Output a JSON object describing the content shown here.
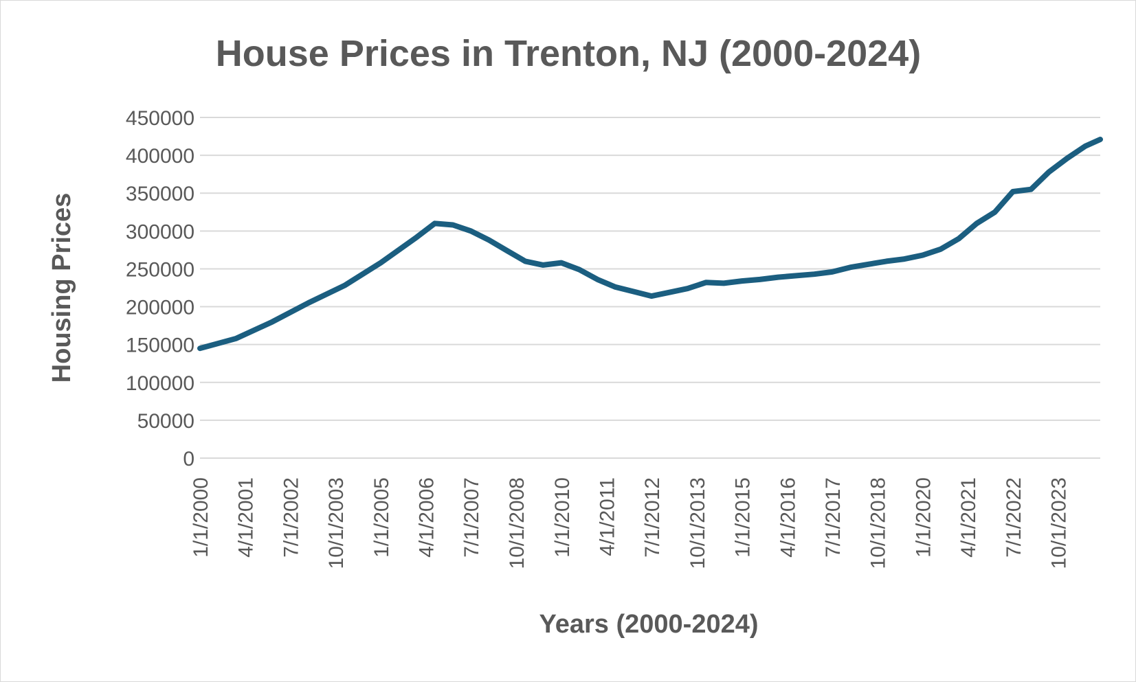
{
  "chart_data": {
    "type": "line",
    "title": "House Prices in Trenton, NJ (2000-2024)",
    "xlabel": "Years (2000-2024)",
    "ylabel": "Housing Prices",
    "ylim": [
      0,
      450000
    ],
    "y_ticks": [
      "0",
      "50000",
      "100000",
      "150000",
      "200000",
      "250000",
      "300000",
      "350000",
      "400000",
      "450000"
    ],
    "x_tick_labels": [
      "1/1/2000",
      "4/1/2001",
      "7/1/2002",
      "10/1/2003",
      "1/1/2005",
      "4/1/2006",
      "7/1/2007",
      "10/1/2008",
      "1/1/2010",
      "4/1/2011",
      "7/1/2012",
      "10/1/2013",
      "1/1/2015",
      "4/1/2016",
      "7/1/2017",
      "10/1/2018",
      "1/1/2020",
      "4/1/2021",
      "7/1/2022",
      "10/1/2023"
    ],
    "grid": true,
    "legend": "none",
    "color": "#1b5e80",
    "series": [
      {
        "x": [
          "1/1/2000",
          "1/1/2001",
          "1/1/2002",
          "1/1/2003",
          "1/1/2004",
          "1/1/2005",
          "1/1/2006",
          "7/1/2006",
          "1/1/2007",
          "7/1/2007",
          "1/1/2008",
          "7/1/2008",
          "1/1/2009",
          "7/1/2009",
          "1/1/2010",
          "7/1/2010",
          "1/1/2011",
          "7/1/2011",
          "1/1/2012",
          "7/1/2012",
          "1/1/2013",
          "7/1/2013",
          "1/1/2014",
          "7/1/2014",
          "1/1/2015",
          "7/1/2015",
          "1/1/2016",
          "7/1/2016",
          "1/1/2017",
          "7/1/2017",
          "1/1/2018",
          "7/1/2018",
          "1/1/2019",
          "7/1/2019",
          "1/1/2020",
          "7/1/2020",
          "1/1/2021",
          "7/1/2021",
          "1/1/2022",
          "7/1/2022",
          "1/1/2023",
          "7/1/2023",
          "1/1/2024",
          "7/1/2024",
          "12/1/2024"
        ],
        "values": [
          145000,
          158000,
          180000,
          205000,
          228000,
          258000,
          292000,
          310000,
          308000,
          300000,
          288000,
          274000,
          260000,
          255000,
          258000,
          249000,
          236000,
          226000,
          220000,
          214000,
          219000,
          224000,
          232000,
          231000,
          234000,
          236000,
          239000,
          241000,
          243000,
          246000,
          252000,
          256000,
          260000,
          263000,
          268000,
          276000,
          290000,
          310000,
          325000,
          352000,
          355000,
          378000,
          396000,
          412000,
          421000
        ]
      }
    ]
  }
}
